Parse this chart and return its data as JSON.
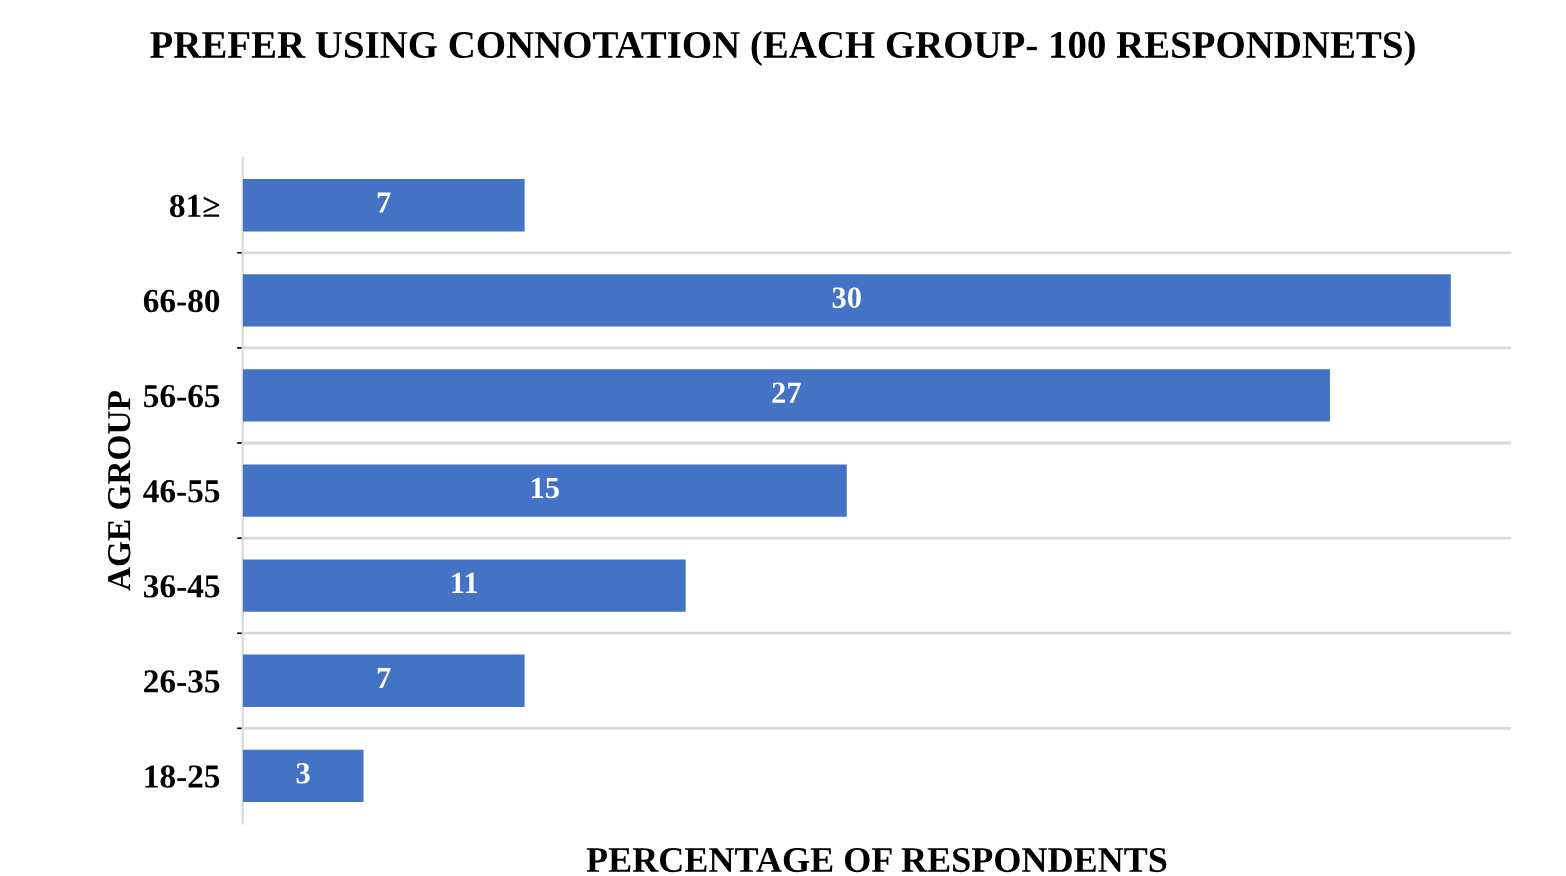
{
  "chart_data": {
    "type": "bar",
    "orientation": "horizontal",
    "title": "PREFER USING CONNOTATION (EACH GROUP- 100 RESPONDNETS)",
    "xlabel": "PERCENTAGE OF RESPONDENTS",
    "ylabel": "AGE GROUP",
    "categories": [
      "81≥",
      "66-80",
      "56-65",
      "46-55",
      "36-45",
      "26-35",
      "18-25"
    ],
    "values": [
      7,
      30,
      27,
      15,
      11,
      7,
      3
    ],
    "color": "#4472c4",
    "data_labels": true,
    "grid": "y",
    "legend": false
  }
}
